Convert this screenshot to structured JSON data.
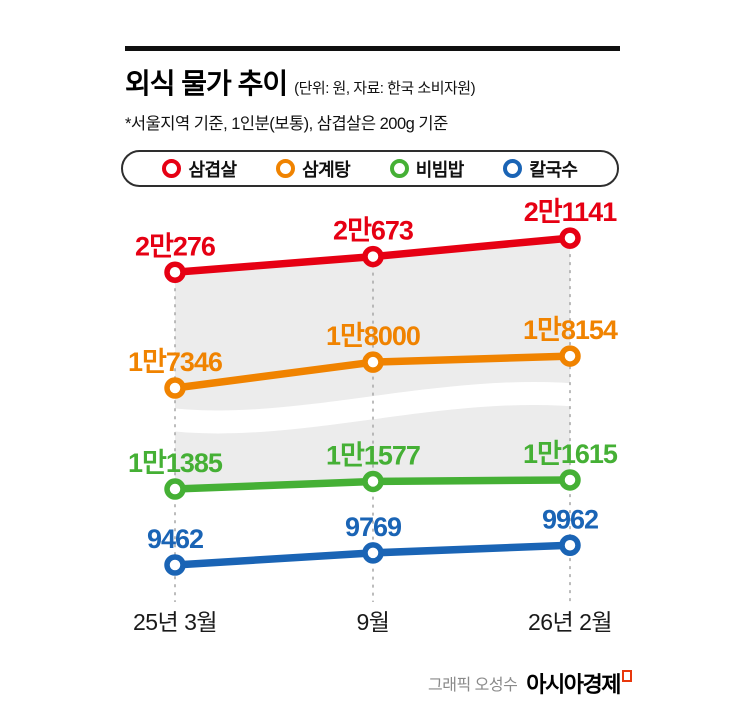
{
  "header": {
    "title": "외식 물가 추이",
    "unit_note": "(단위: 원, 자료: 한국 소비자원)",
    "subtitle": "*서울지역 기준, 1인분(보통), 삼겹살은 200g 기준"
  },
  "chart_data": {
    "type": "line",
    "title": "외식 물가 추이",
    "x": [
      "25년 3월",
      "9월",
      "26년 2월"
    ],
    "series": [
      {
        "name": "삼겹살",
        "color": "#e60013",
        "values": [
          20276,
          20673,
          21141
        ],
        "labels": [
          "2만276",
          "2만673",
          "2만1141"
        ]
      },
      {
        "name": "삼계탕",
        "color": "#f08300",
        "values": [
          17346,
          18000,
          18154
        ],
        "labels": [
          "1만7346",
          "1만8000",
          "1만8154"
        ]
      },
      {
        "name": "비빔밥",
        "color": "#45b035",
        "values": [
          11385,
          11577,
          11615
        ],
        "labels": [
          "1만1385",
          "1만1577",
          "1만1615"
        ]
      },
      {
        "name": "칼국수",
        "color": "#1a64b5",
        "values": [
          9462,
          9769,
          9962
        ],
        "labels": [
          "9462",
          "9769",
          "9962"
        ]
      }
    ],
    "legend_position": "top",
    "axis_break": true,
    "grid": "dashed-vertical"
  },
  "footer": {
    "credit": "그래픽 오성수",
    "brand": "아시아경제"
  }
}
